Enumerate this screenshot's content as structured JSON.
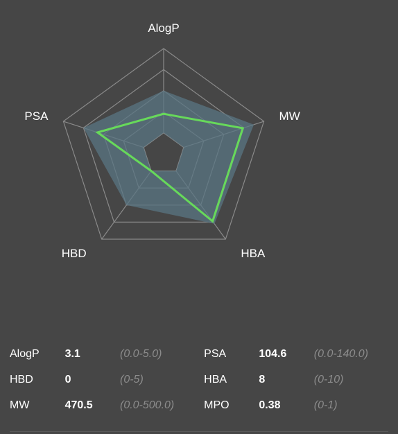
{
  "chart_data": {
    "type": "radar",
    "axes": [
      "AlogP",
      "MW",
      "HBA",
      "HBD",
      "PSA"
    ],
    "rings": 5,
    "reference_band": {
      "lower": [
        0.2,
        0.2,
        0.2,
        0.2,
        0.2
      ],
      "upper": [
        0.6,
        0.9,
        0.82,
        0.6,
        0.8
      ]
    },
    "series": [
      {
        "values": [
          0.38,
          0.79,
          0.79,
          0.2,
          0.66
        ]
      }
    ],
    "colors": {
      "band": "#597683",
      "series": "#67d95a",
      "grid": "#8a8a8a"
    }
  },
  "stats": [
    {
      "label": "AlogP",
      "value": "3.1",
      "range": "(0.0-5.0)",
      "label2": "PSA",
      "value2": "104.6",
      "range2": "(0.0-140.0)"
    },
    {
      "label": "HBD",
      "value": "0",
      "range": "(0-5)",
      "label2": "HBA",
      "value2": "8",
      "range2": "(0-10)"
    },
    {
      "label": "MW",
      "value": "470.5",
      "range": "(0.0-500.0)",
      "label2": "MPO",
      "value2": "0.38",
      "range2": "(0-1)"
    }
  ]
}
